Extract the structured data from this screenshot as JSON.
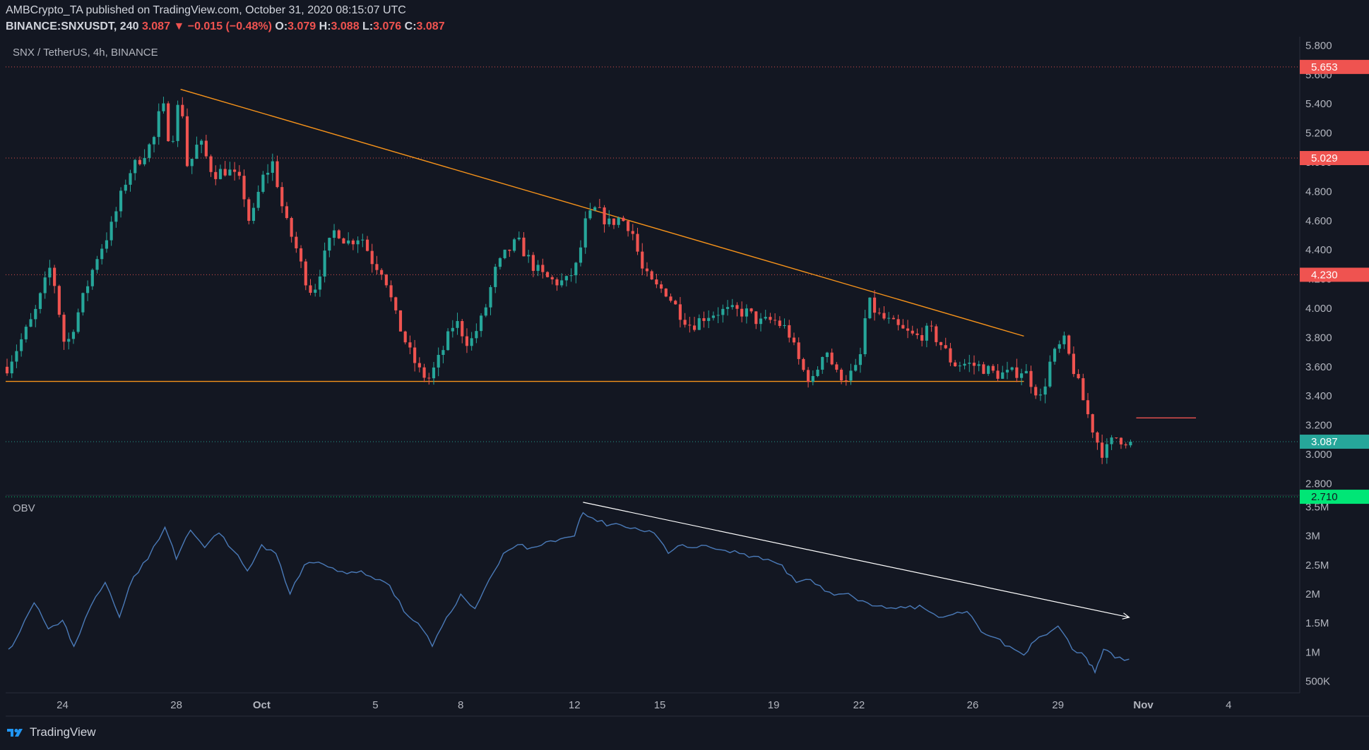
{
  "header": {
    "line1": "AMBCrypto_TA published on TradingView.com, October 31, 2020 08:15:07 UTC",
    "symbol": "BINANCE:SNXUSDT, 240",
    "last": "3.087",
    "change": "▼ −0.015 (−0.48%)",
    "o_label": "O:",
    "o": "3.079",
    "h_label": "H:",
    "h": "3.088",
    "l_label": "L:",
    "l": "3.076",
    "c_label": "C:",
    "c": "3.087"
  },
  "footer": {
    "brand": "TradingView"
  },
  "colors": {
    "background": "#131722",
    "up": "#26a69a",
    "down": "#ef5350",
    "trendline": "#f7931a",
    "obv": "#4a7ab8",
    "obv_trend": "#ffffff"
  },
  "chart_data": [
    {
      "type": "candlestick",
      "title": "SNX / TetherUS, 4h, BINANCE",
      "ylim": [
        2.72,
        5.86
      ],
      "y_ticks": [
        "5.800",
        "5.600",
        "5.400",
        "5.200",
        "5.000",
        "4.800",
        "4.600",
        "4.400",
        "4.200",
        "4.000",
        "3.800",
        "3.600",
        "3.400",
        "3.200",
        "3.000",
        "2.800"
      ],
      "x_ticks": [
        {
          "label": "24",
          "day": 24
        },
        {
          "label": "28",
          "day": 28
        },
        {
          "label": "Oct",
          "day": 31
        },
        {
          "label": "5",
          "day": 35
        },
        {
          "label": "8",
          "day": 38
        },
        {
          "label": "12",
          "day": 42
        },
        {
          "label": "15",
          "day": 45
        },
        {
          "label": "19",
          "day": 49
        },
        {
          "label": "22",
          "day": 52
        },
        {
          "label": "26",
          "day": 56
        },
        {
          "label": "29",
          "day": 59
        },
        {
          "label": "Nov",
          "day": 62
        },
        {
          "label": "4",
          "day": 65
        }
      ],
      "x_range_days": [
        22.0,
        67.5
      ],
      "anchors": [
        [
          22.05,
          3.6
        ],
        [
          23.0,
          3.95
        ],
        [
          23.6,
          4.3
        ],
        [
          24.1,
          3.72
        ],
        [
          24.6,
          4.0
        ],
        [
          25.2,
          4.35
        ],
        [
          25.7,
          4.55
        ],
        [
          26.3,
          4.92
        ],
        [
          26.7,
          5.02
        ],
        [
          27.2,
          5.15
        ],
        [
          27.5,
          5.42
        ],
        [
          27.8,
          5.1
        ],
        [
          28.15,
          5.48
        ],
        [
          28.4,
          4.95
        ],
        [
          28.8,
          5.15
        ],
        [
          29.3,
          4.92
        ],
        [
          29.8,
          4.95
        ],
        [
          30.3,
          4.85
        ],
        [
          30.6,
          4.56
        ],
        [
          31.0,
          4.88
        ],
        [
          31.4,
          5.0
        ],
        [
          31.8,
          4.62
        ],
        [
          32.2,
          4.42
        ],
        [
          32.5,
          4.22
        ],
        [
          32.8,
          4.1
        ],
        [
          33.2,
          4.35
        ],
        [
          33.6,
          4.55
        ],
        [
          34.0,
          4.45
        ],
        [
          34.5,
          4.5
        ],
        [
          34.9,
          4.32
        ],
        [
          35.3,
          4.25
        ],
        [
          35.7,
          3.95
        ],
        [
          36.2,
          3.7
        ],
        [
          36.6,
          3.55
        ],
        [
          36.9,
          3.52
        ],
        [
          37.3,
          3.68
        ],
        [
          37.8,
          3.92
        ],
        [
          38.3,
          3.75
        ],
        [
          38.8,
          3.95
        ],
        [
          39.2,
          4.25
        ],
        [
          39.6,
          4.38
        ],
        [
          40.0,
          4.46
        ],
        [
          40.5,
          4.3
        ],
        [
          40.9,
          4.22
        ],
        [
          41.3,
          4.18
        ],
        [
          41.7,
          4.18
        ],
        [
          42.1,
          4.3
        ],
        [
          42.4,
          4.6
        ],
        [
          42.75,
          4.68
        ],
        [
          43.2,
          4.58
        ],
        [
          43.6,
          4.62
        ],
        [
          44.0,
          4.55
        ],
        [
          44.4,
          4.25
        ],
        [
          44.8,
          4.15
        ],
        [
          45.2,
          4.12
        ],
        [
          45.7,
          3.97
        ],
        [
          46.1,
          3.88
        ],
        [
          46.6,
          3.95
        ],
        [
          47.1,
          3.98
        ],
        [
          47.6,
          3.98
        ],
        [
          48.1,
          3.97
        ],
        [
          48.5,
          3.9
        ],
        [
          49.0,
          3.92
        ],
        [
          49.5,
          3.85
        ],
        [
          49.8,
          3.68
        ],
        [
          50.1,
          3.55
        ],
        [
          50.4,
          3.5
        ],
        [
          50.8,
          3.75
        ],
        [
          51.2,
          3.55
        ],
        [
          51.6,
          3.53
        ],
        [
          52.0,
          3.6
        ],
        [
          52.3,
          4.05
        ],
        [
          52.7,
          3.95
        ],
        [
          53.1,
          3.9
        ],
        [
          53.5,
          3.85
        ],
        [
          54.0,
          3.8
        ],
        [
          54.5,
          3.85
        ],
        [
          54.9,
          3.75
        ],
        [
          55.3,
          3.62
        ],
        [
          55.8,
          3.62
        ],
        [
          56.3,
          3.6
        ],
        [
          56.8,
          3.55
        ],
        [
          57.3,
          3.55
        ],
        [
          57.8,
          3.58
        ],
        [
          58.1,
          3.48
        ],
        [
          58.4,
          3.38
        ],
        [
          58.75,
          3.65
        ],
        [
          59.2,
          3.78
        ],
        [
          59.6,
          3.55
        ],
        [
          60.0,
          3.3
        ],
        [
          60.35,
          3.1
        ],
        [
          60.6,
          3.0
        ],
        [
          61.0,
          3.12
        ],
        [
          61.3,
          3.1
        ],
        [
          61.6,
          3.087
        ]
      ],
      "series": [
        {
          "name": "",
          "kind": "trendline",
          "points": [
            [
              28.15,
              5.5
            ],
            [
              57.8,
              3.81
            ]
          ]
        },
        {
          "name": "",
          "kind": "trendline",
          "points": [
            [
              22.0,
              3.5
            ],
            [
              57.8,
              3.5
            ]
          ]
        },
        {
          "name": "",
          "kind": "segment",
          "points": [
            [
              61.75,
              3.25
            ],
            [
              63.85,
              3.25
            ]
          ]
        }
      ],
      "price_lines": [
        {
          "value": 5.653,
          "label": "5.653",
          "color": "#ef5350"
        },
        {
          "value": 5.029,
          "label": "5.029",
          "color": "#ef5350"
        },
        {
          "value": 4.23,
          "label": "4.230",
          "color": "#ef5350"
        },
        {
          "value": 3.087,
          "label": "3.087",
          "color": "#26a69a"
        },
        {
          "value": 2.71,
          "label": "2.710",
          "color": "#00e676"
        }
      ]
    },
    {
      "type": "line",
      "title": "OBV",
      "ylim": [
        300000,
        3700000
      ],
      "y_ticks": [
        "3.5M",
        "3M",
        "2.5M",
        "2M",
        "1.5M",
        "1M",
        "500K"
      ],
      "points": [
        [
          22.1,
          1050000
        ],
        [
          22.5,
          1350000
        ],
        [
          23.0,
          1850000
        ],
        [
          23.5,
          1400000
        ],
        [
          24.0,
          1550000
        ],
        [
          24.4,
          1100000
        ],
        [
          25.0,
          1800000
        ],
        [
          25.5,
          2200000
        ],
        [
          26.0,
          1600000
        ],
        [
          26.5,
          2300000
        ],
        [
          27.0,
          2600000
        ],
        [
          27.6,
          3150000
        ],
        [
          28.0,
          2600000
        ],
        [
          28.5,
          3100000
        ],
        [
          29.0,
          2800000
        ],
        [
          29.5,
          3050000
        ],
        [
          30.0,
          2750000
        ],
        [
          30.5,
          2400000
        ],
        [
          31.0,
          2850000
        ],
        [
          31.5,
          2700000
        ],
        [
          32.0,
          2000000
        ],
        [
          32.5,
          2500000
        ],
        [
          33.0,
          2550000
        ],
        [
          33.5,
          2450000
        ],
        [
          34.0,
          2350000
        ],
        [
          34.5,
          2400000
        ],
        [
          35.0,
          2250000
        ],
        [
          35.5,
          2150000
        ],
        [
          36.0,
          1700000
        ],
        [
          36.5,
          1500000
        ],
        [
          37.0,
          1100000
        ],
        [
          37.5,
          1600000
        ],
        [
          38.0,
          2000000
        ],
        [
          38.5,
          1750000
        ],
        [
          39.0,
          2250000
        ],
        [
          39.5,
          2700000
        ],
        [
          40.0,
          2850000
        ],
        [
          40.5,
          2800000
        ],
        [
          41.0,
          2900000
        ],
        [
          41.5,
          2950000
        ],
        [
          42.0,
          3000000
        ],
        [
          42.3,
          3400000
        ],
        [
          42.8,
          3250000
        ],
        [
          43.3,
          3200000
        ],
        [
          43.8,
          3150000
        ],
        [
          44.3,
          3100000
        ],
        [
          44.8,
          3050000
        ],
        [
          45.3,
          2700000
        ],
        [
          45.8,
          2850000
        ],
        [
          46.3,
          2800000
        ],
        [
          46.8,
          2800000
        ],
        [
          47.3,
          2750000
        ],
        [
          47.8,
          2700000
        ],
        [
          48.3,
          2650000
        ],
        [
          48.8,
          2600000
        ],
        [
          49.3,
          2500000
        ],
        [
          49.8,
          2200000
        ],
        [
          50.3,
          2250000
        ],
        [
          50.8,
          2050000
        ],
        [
          51.3,
          2000000
        ],
        [
          51.8,
          1950000
        ],
        [
          52.3,
          1850000
        ],
        [
          52.8,
          1800000
        ],
        [
          53.3,
          1750000
        ],
        [
          53.8,
          1800000
        ],
        [
          54.3,
          1750000
        ],
        [
          54.8,
          1600000
        ],
        [
          55.3,
          1650000
        ],
        [
          55.8,
          1700000
        ],
        [
          56.3,
          1350000
        ],
        [
          56.8,
          1250000
        ],
        [
          57.3,
          1100000
        ],
        [
          57.8,
          950000
        ],
        [
          58.2,
          1200000
        ],
        [
          58.6,
          1300000
        ],
        [
          59.0,
          1450000
        ],
        [
          59.5,
          1050000
        ],
        [
          60.0,
          900000
        ],
        [
          60.3,
          650000
        ],
        [
          60.6,
          1050000
        ],
        [
          61.0,
          900000
        ],
        [
          61.5,
          880000
        ]
      ],
      "series": [
        {
          "name": "",
          "kind": "trendline_arrow",
          "points": [
            [
              42.3,
              3580000
            ],
            [
              61.5,
              1600000
            ]
          ]
        }
      ]
    }
  ]
}
